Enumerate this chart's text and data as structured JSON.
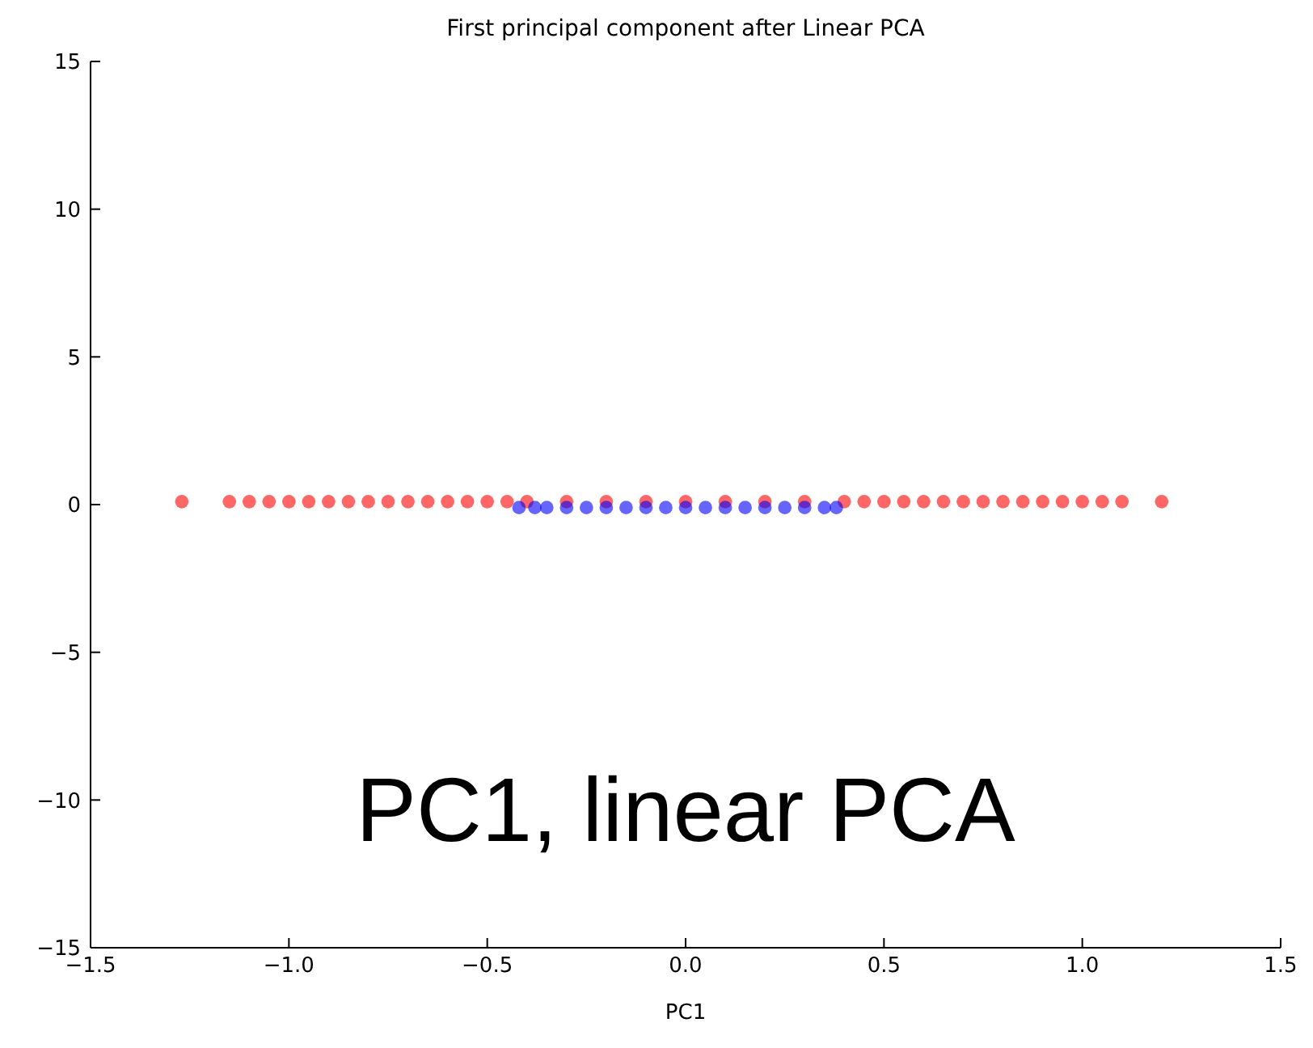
{
  "chart_data": {
    "type": "scatter",
    "title": "First principal component after Linear PCA",
    "xlabel": "PC1",
    "annotations": [
      "PC1, linear PCA"
    ],
    "xlim": [
      -1.5,
      1.5
    ],
    "xticks": [
      {
        "value": -1.5,
        "label": "−1.5"
      },
      {
        "value": -1,
        "label": "−1.0"
      },
      {
        "value": -0.5,
        "label": "−0.5"
      },
      {
        "value": 0,
        "label": "0.0"
      },
      {
        "value": 0.5,
        "label": "0.5"
      },
      {
        "value": 1,
        "label": "1.0"
      },
      {
        "value": 1.5,
        "label": "1.5"
      }
    ],
    "ylim": [
      -15,
      15
    ],
    "yticks": [
      {
        "value": -15,
        "label": "−15"
      },
      {
        "value": -10,
        "label": "−10"
      },
      {
        "value": -5,
        "label": "−5"
      },
      0,
      5,
      10,
      15
    ],
    "grid": false,
    "legend": false,
    "marker": "circle",
    "series": [
      {
        "color": "#ff0000",
        "x": [
          -1.27,
          -1.15,
          -1.1,
          -1.05,
          -1.0,
          -0.95,
          -0.9,
          -0.85,
          -0.8,
          -0.75,
          -0.7,
          -0.65,
          -0.6,
          -0.55,
          -0.5,
          -0.45,
          -0.4,
          -0.3,
          -0.2,
          -0.1,
          0.0,
          0.1,
          0.2,
          0.3,
          0.4,
          0.45,
          0.5,
          0.55,
          0.6,
          0.65,
          0.7,
          0.75,
          0.8,
          0.85,
          0.9,
          0.95,
          1.0,
          1.05,
          1.1,
          1.2
        ],
        "values": [
          0.1,
          0.1,
          0.1,
          0.1,
          0.1,
          0.1,
          0.1,
          0.1,
          0.1,
          0.1,
          0.1,
          0.1,
          0.1,
          0.1,
          0.1,
          0.1,
          0.1,
          0.1,
          0.1,
          0.1,
          0.1,
          0.1,
          0.1,
          0.1,
          0.1,
          0.1,
          0.1,
          0.1,
          0.1,
          0.1,
          0.1,
          0.1,
          0.1,
          0.1,
          0.1,
          0.1,
          0.1,
          0.1,
          0.1,
          0.1
        ]
      },
      {
        "color": "#0000ff",
        "x": [
          -0.42,
          -0.38,
          -0.35,
          -0.3,
          -0.25,
          -0.2,
          -0.15,
          -0.1,
          -0.05,
          0.0,
          0.05,
          0.1,
          0.15,
          0.2,
          0.25,
          0.3,
          0.35,
          0.38
        ],
        "values": [
          -0.1,
          -0.1,
          -0.1,
          -0.1,
          -0.1,
          -0.1,
          -0.1,
          -0.1,
          -0.1,
          -0.1,
          -0.1,
          -0.1,
          -0.1,
          -0.1,
          -0.1,
          -0.1,
          -0.1,
          -0.1
        ]
      }
    ]
  }
}
